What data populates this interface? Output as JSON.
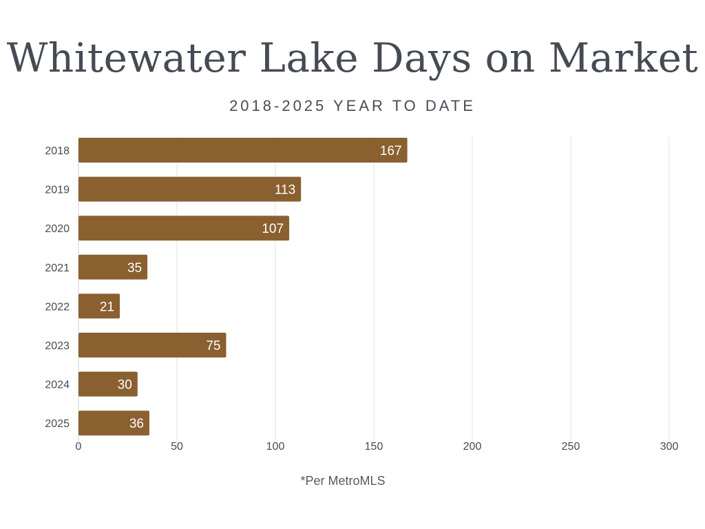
{
  "chart_data": {
    "type": "bar",
    "orientation": "horizontal",
    "title": "Whitewater Lake Days on Market",
    "subtitle": "2018-2025 YEAR TO DATE",
    "categories": [
      "2018",
      "2019",
      "2020",
      "2021",
      "2022",
      "2023",
      "2024",
      "2025"
    ],
    "values": [
      167,
      113,
      107,
      35,
      21,
      75,
      30,
      36
    ],
    "xlim": [
      0,
      300
    ],
    "xticks": [
      0,
      50,
      100,
      150,
      200,
      250,
      300
    ],
    "grid": true,
    "legend": "none",
    "data_labels": true,
    "bar_color": "#8a6030",
    "label_color": "#ffffff",
    "text_color": "#454b54",
    "grid_color": "#e2e2e2",
    "footnote": "*Per MetroMLS"
  }
}
